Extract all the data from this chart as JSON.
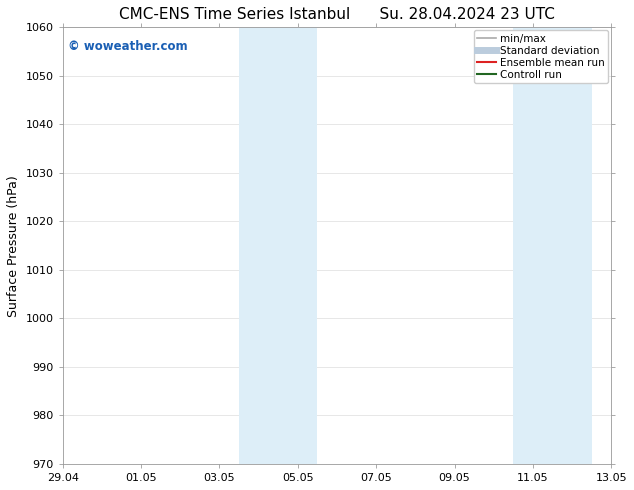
{
  "title": "CMC-ENS Time Series Istanbul      Su. 28.04.2024 23 UTC",
  "ylabel": "Surface Pressure (hPa)",
  "ylim": [
    970,
    1060
  ],
  "yticks": [
    970,
    980,
    990,
    1000,
    1010,
    1020,
    1030,
    1040,
    1050,
    1060
  ],
  "xtick_labels": [
    "29.04",
    "01.05",
    "03.05",
    "05.05",
    "07.05",
    "09.05",
    "11.05",
    "13.05"
  ],
  "xtick_positions": [
    0,
    2,
    4,
    6,
    8,
    10,
    12,
    14
  ],
  "xlim": [
    0,
    14
  ],
  "shaded_bands": [
    {
      "x_start": 4.5,
      "x_end": 5.5
    },
    {
      "x_start": 5.5,
      "x_end": 6.5
    },
    {
      "x_start": 11.5,
      "x_end": 12.5
    },
    {
      "x_start": 12.5,
      "x_end": 13.5
    }
  ],
  "shade_color": "#ddeef8",
  "watermark_text": "© woweather.com",
  "watermark_color": "#1a5fb4",
  "legend_entries": [
    {
      "label": "min/max",
      "color": "#aaaaaa",
      "lw": 1.2
    },
    {
      "label": "Standard deviation",
      "color": "#bbccdd",
      "lw": 5
    },
    {
      "label": "Ensemble mean run",
      "color": "#dd2222",
      "lw": 1.5
    },
    {
      "label": "Controll run",
      "color": "#226622",
      "lw": 1.5
    }
  ],
  "background_color": "#ffffff",
  "grid_color": "#dddddd",
  "title_fontsize": 11,
  "ylabel_fontsize": 9,
  "tick_fontsize": 8,
  "legend_fontsize": 7.5,
  "watermark_fontsize": 8.5
}
